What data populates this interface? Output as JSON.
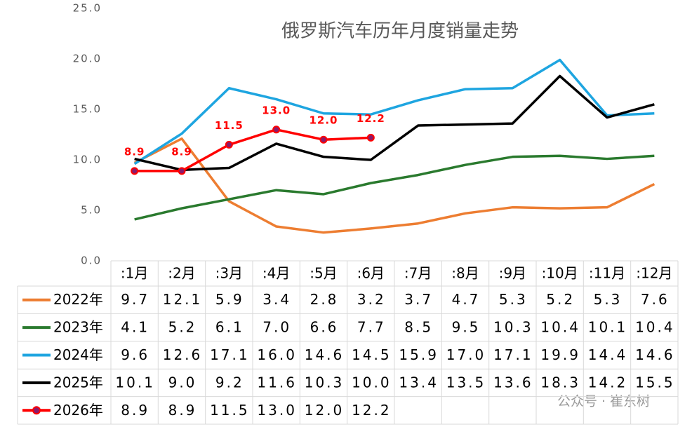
{
  "chart_data": {
    "type": "line",
    "title": "俄罗斯汽车历年月度销量走势",
    "categories": [
      ":1月",
      ":2月",
      ":3月",
      ":4月",
      ":5月",
      ":6月",
      ":7月",
      ":8月",
      ":9月",
      ":10月",
      ":11月",
      ":12月"
    ],
    "ylim": [
      0,
      25
    ],
    "yticks": [
      {
        "value": 0,
        "label": "0.0"
      },
      {
        "value": 5,
        "label": "5.0"
      },
      {
        "value": 10,
        "label": "10.0"
      },
      {
        "value": 15,
        "label": "15.0"
      },
      {
        "value": 20,
        "label": "20.0"
      },
      {
        "value": 25,
        "label": "25.0"
      }
    ],
    "grid": false,
    "series": [
      {
        "name": "2022年",
        "color": "#ed7d31",
        "values": [
          9.7,
          12.1,
          5.9,
          3.4,
          2.8,
          3.2,
          3.7,
          4.7,
          5.3,
          5.2,
          5.3,
          7.6
        ],
        "value_labels": [
          "9.7",
          "12.1",
          "5.9",
          "3.4",
          "2.8",
          "3.2",
          "3.7",
          "4.7",
          "5.3",
          "5.2",
          "5.3",
          "7.6"
        ]
      },
      {
        "name": "2023年",
        "color": "#2a7a2e",
        "values": [
          4.1,
          5.2,
          6.1,
          7.0,
          6.6,
          7.7,
          8.5,
          9.5,
          10.3,
          10.4,
          10.1,
          10.4
        ],
        "value_labels": [
          "4.1",
          "5.2",
          "6.1",
          "7.0",
          "6.6",
          "7.7",
          "8.5",
          "9.5",
          "10.3",
          "10.4",
          "10.1",
          "10.4"
        ]
      },
      {
        "name": "2024年",
        "color": "#1ea5e0",
        "values": [
          9.6,
          12.6,
          17.1,
          16.0,
          14.6,
          14.5,
          15.9,
          17.0,
          17.1,
          19.9,
          14.4,
          14.6
        ],
        "value_labels": [
          "9.6",
          "12.6",
          "17.1",
          "16.0",
          "14.6",
          "14.5",
          "15.9",
          "17.0",
          "17.1",
          "19.9",
          "14.4",
          "14.6"
        ]
      },
      {
        "name": "2025年",
        "color": "#000000",
        "values": [
          10.1,
          9.0,
          9.2,
          11.6,
          10.3,
          10.0,
          13.4,
          13.5,
          13.6,
          18.3,
          14.2,
          15.5
        ],
        "value_labels": [
          "10.1",
          "9.0",
          "9.2",
          "11.6",
          "10.3",
          "10.0",
          "13.4",
          "13.5",
          "13.6",
          "18.3",
          "14.2",
          "15.5"
        ]
      },
      {
        "name": "2026年",
        "color": "#ff0000",
        "marker_color": "#8b1a6b",
        "data_labels": true,
        "values": [
          8.9,
          8.9,
          11.5,
          13.0,
          12.0,
          12.2,
          null,
          null,
          null,
          null,
          null,
          null
        ],
        "value_labels": [
          "8.9",
          "8.9",
          "11.5",
          "13.0",
          "12.0",
          "12.2",
          null,
          null,
          null,
          null,
          null,
          null
        ]
      }
    ],
    "watermark": "公众号 · 崔东树"
  }
}
